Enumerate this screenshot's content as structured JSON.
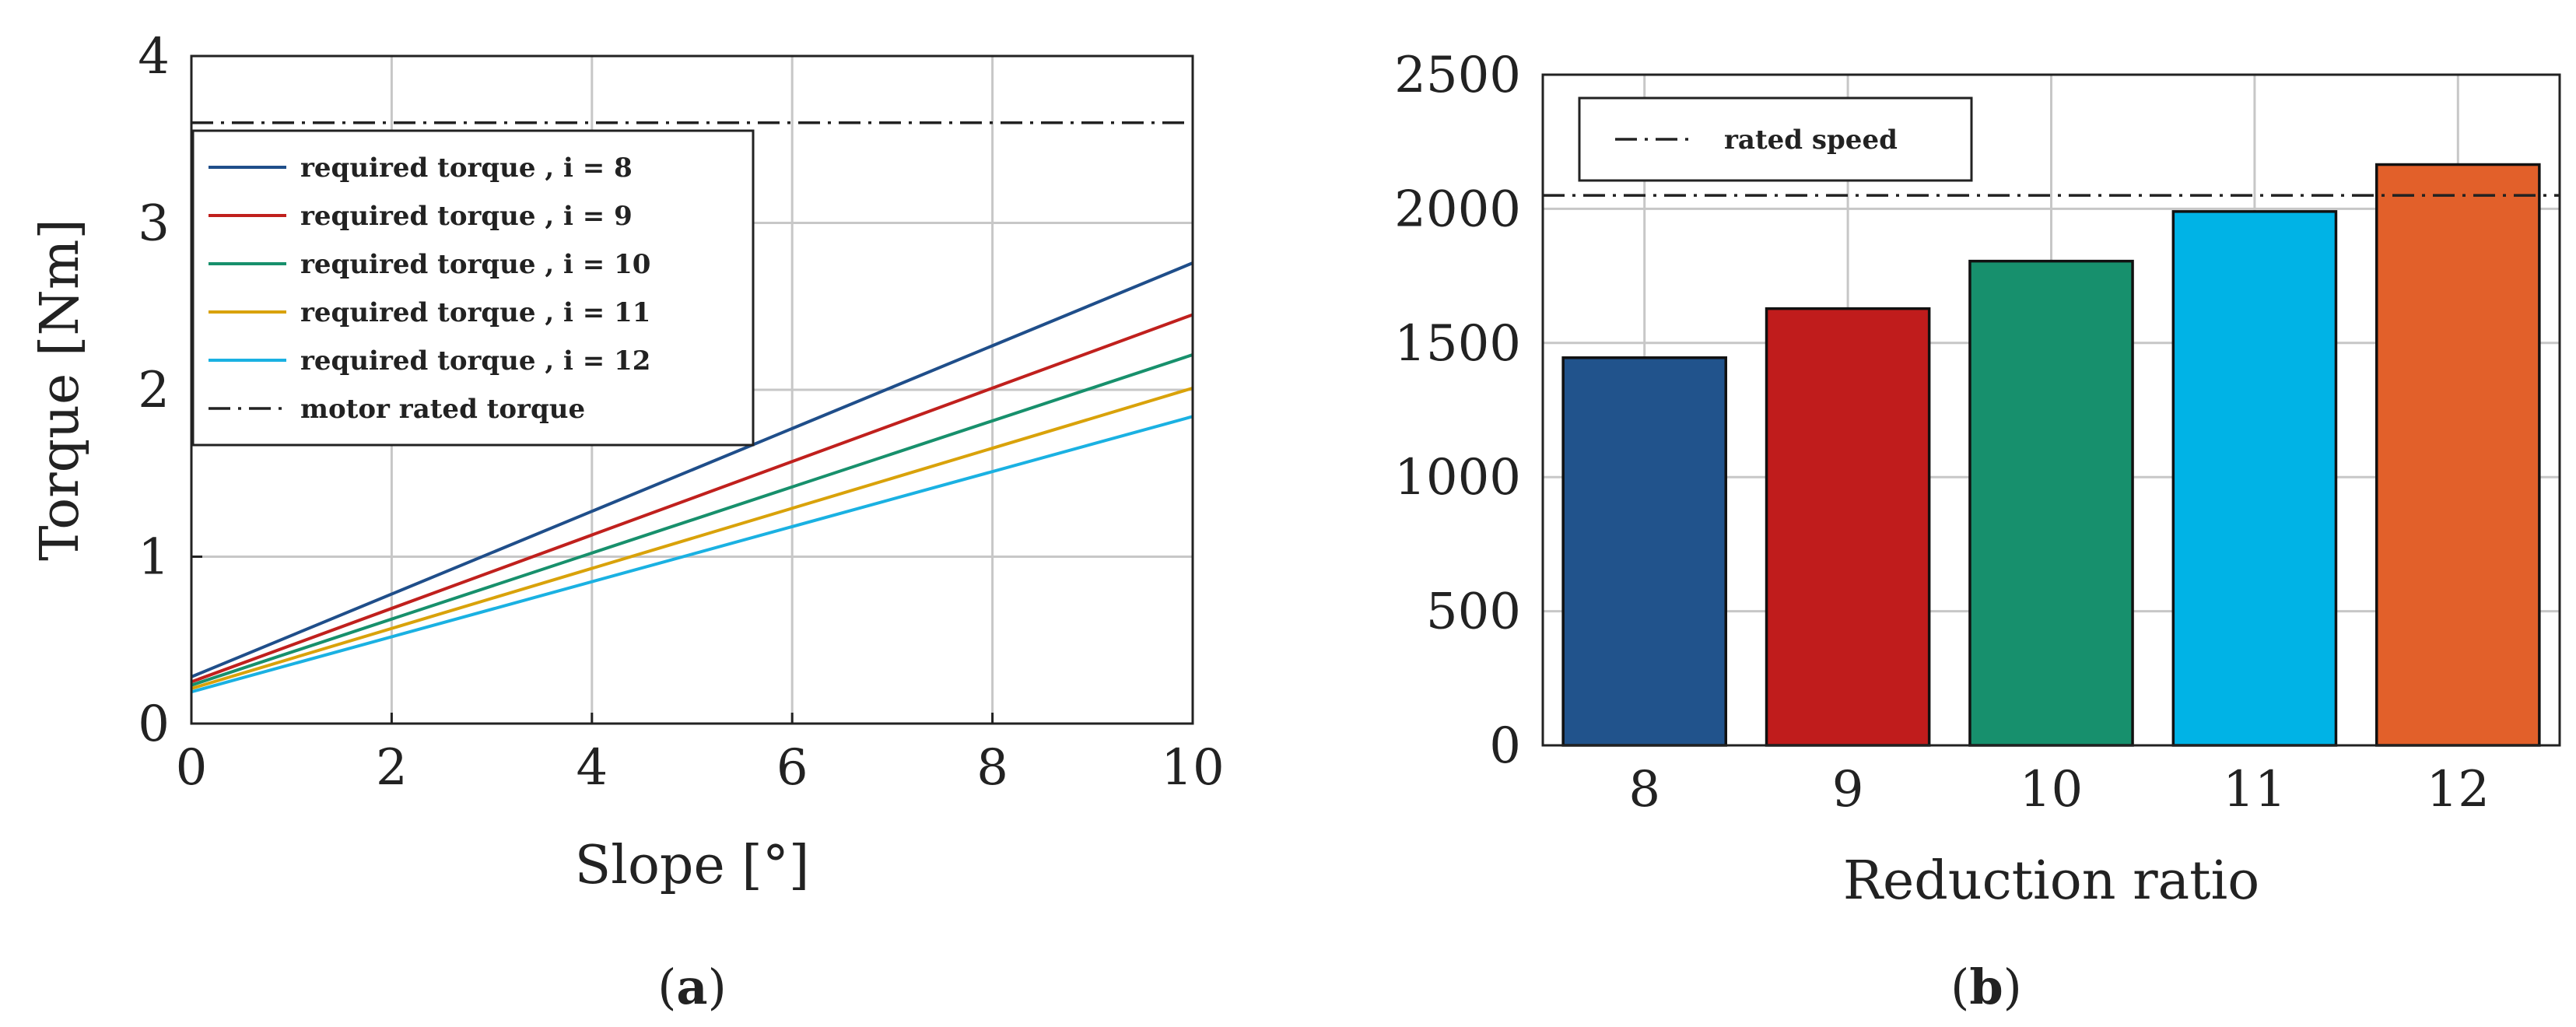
{
  "chart_data": [
    {
      "type": "line",
      "xlabel": "Slope [°]",
      "ylabel": "Torque [Nm]",
      "xlim": [
        0,
        10
      ],
      "ylim": [
        0,
        4
      ],
      "x_ticks": [
        "0",
        "2",
        "4",
        "6",
        "8",
        "10"
      ],
      "y_ticks": [
        "0",
        "1",
        "2",
        "3",
        "4"
      ],
      "grid": true,
      "legend_position": "top-left",
      "x": [
        0,
        10
      ],
      "series": [
        {
          "name": "required torque , i = 8",
          "values": [
            0.28,
            2.76
          ],
          "color": "#1f4e8a"
        },
        {
          "name": "required torque , i = 9",
          "values": [
            0.25,
            2.45
          ],
          "color": "#c0201d"
        },
        {
          "name": "required torque , i = 10",
          "values": [
            0.23,
            2.21
          ],
          "color": "#17906c"
        },
        {
          "name": "required torque , i = 11",
          "values": [
            0.21,
            2.01
          ],
          "color": "#d9a20a"
        },
        {
          "name": "required torque , i = 12",
          "values": [
            0.19,
            1.84
          ],
          "color": "#1ab1e2"
        }
      ],
      "reference_line": {
        "name": "motor rated torque",
        "value": 3.6,
        "color": "#222222",
        "style": "dash-dot"
      }
    },
    {
      "type": "bar",
      "xlabel": "Reduction ratio",
      "ylabel": "",
      "ylim": [
        0,
        2500
      ],
      "y_ticks": [
        "0",
        "500",
        "1000",
        "1500",
        "2000",
        "2500"
      ],
      "grid": true,
      "legend_position": "top-left",
      "categories": [
        "8",
        "9",
        "10",
        "11",
        "12"
      ],
      "values": [
        1445,
        1628,
        1805,
        1990,
        2165
      ],
      "colors": [
        "#21538c",
        "#c01c1c",
        "#17906d",
        "#00b3e6",
        "#e2602a"
      ],
      "reference_line": {
        "name": "rated speed",
        "value": 2050,
        "color": "#222222",
        "style": "dash-dot"
      }
    }
  ],
  "captions": [
    {
      "open": "(",
      "letter": "a",
      "close": ")"
    },
    {
      "open": "(",
      "letter": "b",
      "close": ")"
    }
  ]
}
